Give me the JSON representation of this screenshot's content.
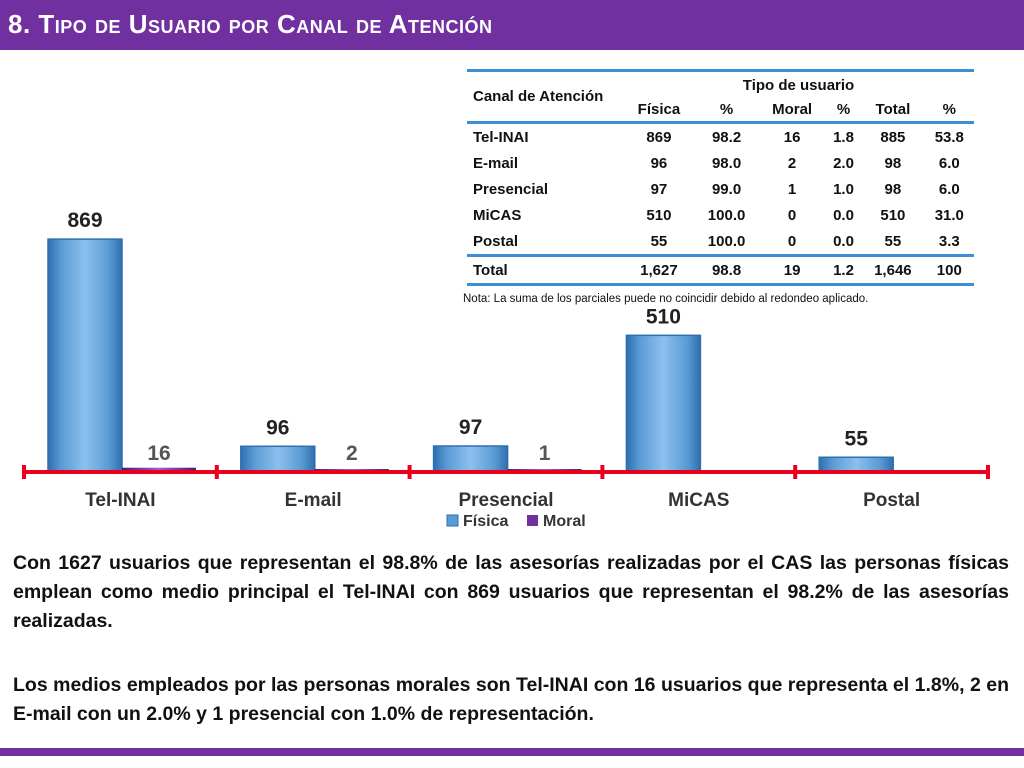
{
  "title": "8. Tipo de Usuario por Canal de Atención",
  "table": {
    "corner_header": "Canal de Atención",
    "group_header": "Tipo de usuario",
    "columns": [
      "Física",
      "%",
      "Moral",
      "%",
      "Total",
      "%"
    ],
    "rows": [
      {
        "label": "Tel-INAI",
        "values": [
          "869",
          "98.2",
          "16",
          "1.8",
          "885",
          "53.8"
        ]
      },
      {
        "label": "E-mail",
        "values": [
          "96",
          "98.0",
          "2",
          "2.0",
          "98",
          "6.0"
        ]
      },
      {
        "label": "Presencial",
        "values": [
          "97",
          "99.0",
          "1",
          "1.0",
          "98",
          "6.0"
        ]
      },
      {
        "label": "MiCAS",
        "values": [
          "510",
          "100.0",
          "0",
          "0.0",
          "510",
          "31.0"
        ]
      },
      {
        "label": "Postal",
        "values": [
          "55",
          "100.0",
          "0",
          "0.0",
          "55",
          "3.3"
        ]
      }
    ],
    "total": {
      "label": "Total",
      "values": [
        "1,627",
        "98.8",
        "19",
        "1.2",
        "1,646",
        "100"
      ]
    },
    "note": "Nota: La suma de los parciales puede no coincidir debido al redondeo aplicado."
  },
  "chart_data": {
    "type": "bar",
    "categories": [
      "Tel-INAI",
      "E-mail",
      "Presencial",
      "MiCAS",
      "Postal"
    ],
    "series": [
      {
        "name": "Física",
        "values": [
          869,
          96,
          97,
          510,
          55
        ],
        "labels": [
          "869",
          "96",
          "97",
          "510",
          "55"
        ]
      },
      {
        "name": "Moral",
        "values": [
          16,
          2,
          1,
          0,
          0
        ],
        "labels": [
          "16",
          "2",
          "1",
          "",
          ""
        ]
      }
    ],
    "ylim": [
      0,
      1000
    ],
    "legend": "bottom",
    "colors": {
      "fisica": "#5b9bd5",
      "fisica_dark": "#2e6fb0",
      "moral": "#7030a0",
      "axis": "#e8001c"
    }
  },
  "paragraphs": [
    "Con 1627 usuarios que representan el 98.8% de las asesorías realizadas por el CAS las personas físicas emplean como medio principal el Tel-INAI con 869 usuarios que representan el 98.2% de las asesorías realizadas.",
    "Los medios empleados por las personas morales son Tel-INAI con 16 usuarios que representa el 1.8%,  2 en E-mail  con un 2.0% y 1 presencial con 1.0% de representación."
  ]
}
